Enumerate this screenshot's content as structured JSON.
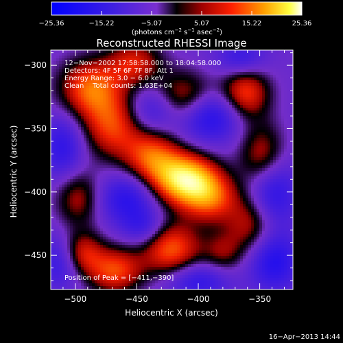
{
  "chart_data": {
    "type": "heatmap",
    "title": "Reconstructed RHESSI Image",
    "xlabel": "Heliocentric X (arcsec)",
    "ylabel": "Heliocentric Y (arcsec)",
    "xlim": [
      -520,
      -323
    ],
    "ylim": [
      -477,
      -288
    ],
    "x_ticks": [
      -500,
      -450,
      -400,
      -350
    ],
    "y_ticks": [
      -300,
      -350,
      -400,
      -450
    ],
    "x_tick_labels": [
      "−500",
      "−450",
      "−400",
      "−350"
    ],
    "y_tick_labels": [
      "−300",
      "−350",
      "−400",
      "−450"
    ],
    "colorbar": {
      "range": [
        -25.36,
        25.36
      ],
      "tick_values": [
        -25.36,
        -15.22,
        -5.07,
        5.07,
        15.22,
        25.36
      ],
      "tick_labels": [
        "−25.36",
        "−15.22",
        "−5.07",
        "5.07",
        "15.22",
        "25.36"
      ],
      "unit_prefix": "(photons cm",
      "unit_exp1": "−2",
      "unit_mid": " s",
      "unit_exp2": "−1",
      "unit_mid2": " asec",
      "unit_exp3": "−2",
      "unit_suffix": ")"
    },
    "colors": {
      "negative_low": "#0000ff",
      "negative_mid": "#7a2fd0",
      "near_zero": "#000000",
      "positive_mid": "#e01010",
      "positive_high": "#ff9000",
      "peak": "#ffffff"
    },
    "info": [
      "12−Nov−2002 17:58:58.000 to 18:04:58.000",
      "Detectors: 4F 5F 6F 7F 8F, Att 1",
      "Energy Range: 3.0 − 6.0 keV",
      "Clean    Total counts: 1.63E+04"
    ],
    "peak_label": "Position of Peak = [−411,−390]",
    "peak": [
      -411,
      -390
    ],
    "blobs": [
      {
        "x": -411,
        "y": -390,
        "amp": 25.0,
        "sx": 18,
        "sy": 14
      },
      {
        "x": -438,
        "y": -372,
        "amp": 15.0,
        "sx": 16,
        "sy": 15
      },
      {
        "x": -390,
        "y": -405,
        "amp": 14.0,
        "sx": 16,
        "sy": 14
      },
      {
        "x": -470,
        "y": -348,
        "amp": 14.0,
        "sx": 17,
        "sy": 18
      },
      {
        "x": -488,
        "y": -318,
        "amp": 16.0,
        "sx": 18,
        "sy": 16
      },
      {
        "x": -452,
        "y": -298,
        "amp": 12.0,
        "sx": 16,
        "sy": 13
      },
      {
        "x": -412,
        "y": -325,
        "amp": 12.0,
        "sx": 17,
        "sy": 14
      },
      {
        "x": -362,
        "y": -322,
        "amp": 15.0,
        "sx": 14,
        "sy": 15
      },
      {
        "x": -348,
        "y": -372,
        "amp": 12.0,
        "sx": 13,
        "sy": 18
      },
      {
        "x": -357,
        "y": -425,
        "amp": 11.0,
        "sx": 14,
        "sy": 16
      },
      {
        "x": -422,
        "y": -445,
        "amp": 16.0,
        "sx": 17,
        "sy": 15
      },
      {
        "x": -468,
        "y": -462,
        "amp": 15.0,
        "sx": 16,
        "sy": 13
      },
      {
        "x": -498,
        "y": -405,
        "amp": 10.0,
        "sx": 13,
        "sy": 16
      },
      {
        "x": -495,
        "y": -448,
        "amp": 12.0,
        "sx": 12,
        "sy": 12
      },
      {
        "x": -380,
        "y": -448,
        "amp": 8.0,
        "sx": 12,
        "sy": 12
      },
      {
        "x": -390,
        "y": -340,
        "amp": -13.0,
        "sx": 18,
        "sy": 14
      },
      {
        "x": -458,
        "y": -405,
        "amp": -11.0,
        "sx": 16,
        "sy": 14
      },
      {
        "x": -510,
        "y": -365,
        "amp": -10.0,
        "sx": 12,
        "sy": 18
      },
      {
        "x": -437,
        "y": -335,
        "amp": -9.0,
        "sx": 14,
        "sy": 13
      },
      {
        "x": -340,
        "y": -400,
        "amp": -12.0,
        "sx": 14,
        "sy": 20
      },
      {
        "x": -338,
        "y": -455,
        "amp": -12.0,
        "sx": 14,
        "sy": 16
      },
      {
        "x": -400,
        "y": -470,
        "amp": -10.0,
        "sx": 18,
        "sy": 10
      },
      {
        "x": -365,
        "y": -295,
        "amp": -9.0,
        "sx": 14,
        "sy": 10
      },
      {
        "x": -512,
        "y": -455,
        "amp": -9.0,
        "sx": 12,
        "sy": 15
      },
      {
        "x": -445,
        "y": -428,
        "amp": -8.0,
        "sx": 12,
        "sy": 10
      }
    ],
    "grid": false,
    "legend": "colorbar-top"
  },
  "timestamp": "16−Apr−2013 14:44"
}
